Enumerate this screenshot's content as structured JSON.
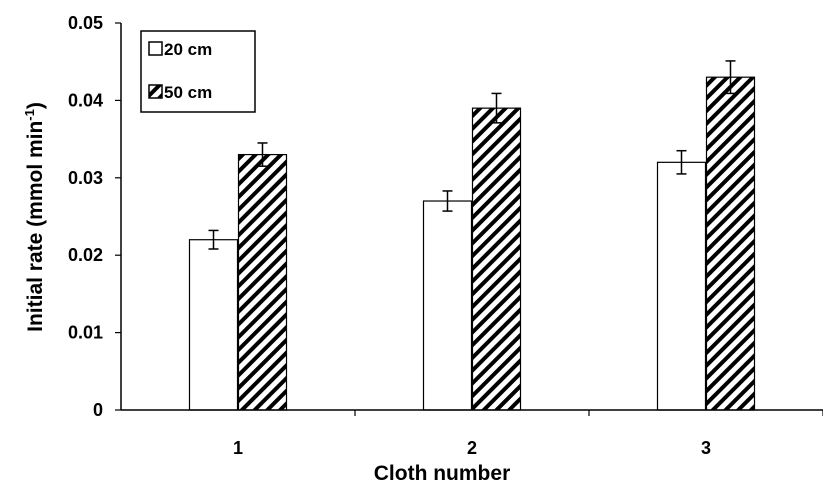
{
  "chart_data": {
    "type": "bar",
    "categories": [
      "1",
      "2",
      "3"
    ],
    "series": [
      {
        "name": "20 cm",
        "values": [
          0.022,
          0.027,
          0.032
        ],
        "errors": [
          0.0012,
          0.0013,
          0.0015
        ],
        "fill": "plain"
      },
      {
        "name": "50 cm",
        "values": [
          0.033,
          0.039,
          0.043
        ],
        "errors": [
          0.0015,
          0.0019,
          0.0021
        ],
        "fill": "diagonal-hatch"
      }
    ],
    "xlabel": "Cloth number",
    "ylabel_main": "Initial rate (mmol min",
    "ylabel_sup": "-1",
    "ylabel_end": ")",
    "ylim": [
      0,
      0.05
    ],
    "yticks": [
      "0",
      "0.01",
      "0.02",
      "0.03",
      "0.04",
      "0.05"
    ],
    "grid": false,
    "legend_position": "top-left",
    "colors": {
      "bar_edge": "#000000",
      "bar_fill": "#ffffff",
      "hatch": "#000000"
    }
  }
}
